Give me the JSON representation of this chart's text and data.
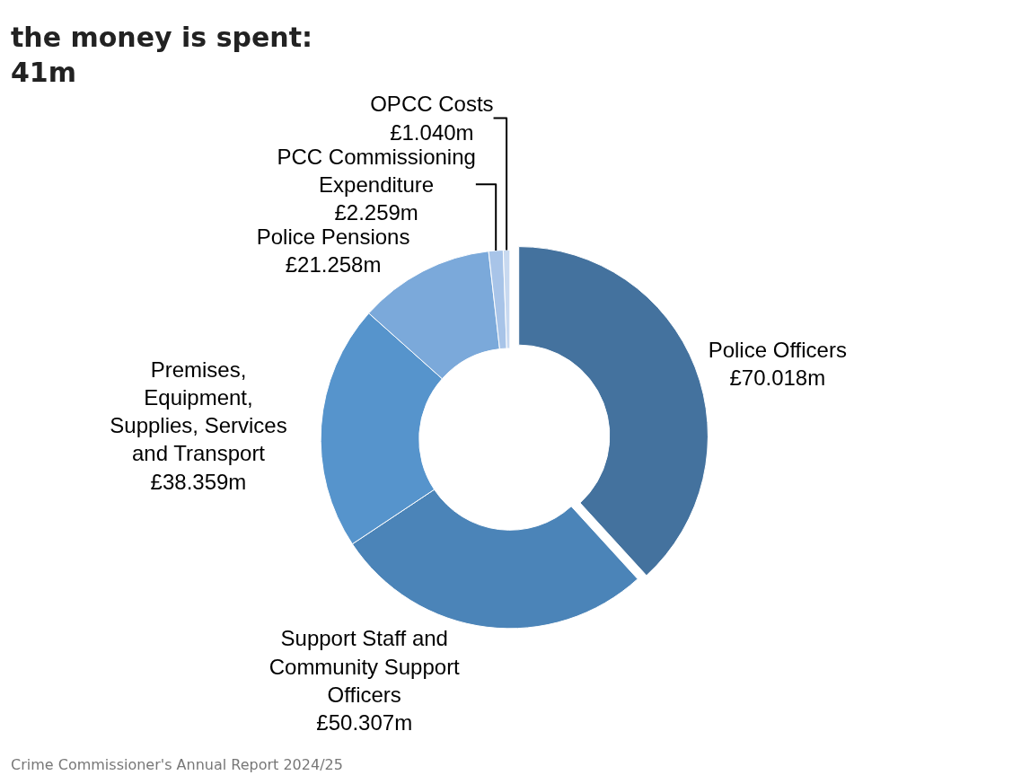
{
  "chart_data": {
    "type": "donut",
    "title": "the money is spent:\n41m",
    "categories": [
      "Police Officers",
      "Support Staff and Community Support Officers",
      "Premises, Equipment, Supplies, Services and Transport",
      "Police Pensions",
      "PCC Commissioning Expenditure",
      "OPCC Costs"
    ],
    "values": [
      70.018,
      50.307,
      38.359,
      21.258,
      2.259,
      1.04
    ],
    "value_labels": [
      "£70.018m",
      "£50.307m",
      "£38.359m",
      "£21.258m",
      "£2.259m",
      "£1.040m"
    ],
    "colors": [
      "#44729e",
      "#4b84b8",
      "#5694cc",
      "#7ba9da",
      "#a8c4e8",
      "#c8d9f0"
    ],
    "annotations": [
      "Crime Commissioner's Annual Report 2024/25"
    ],
    "legend": false
  }
}
